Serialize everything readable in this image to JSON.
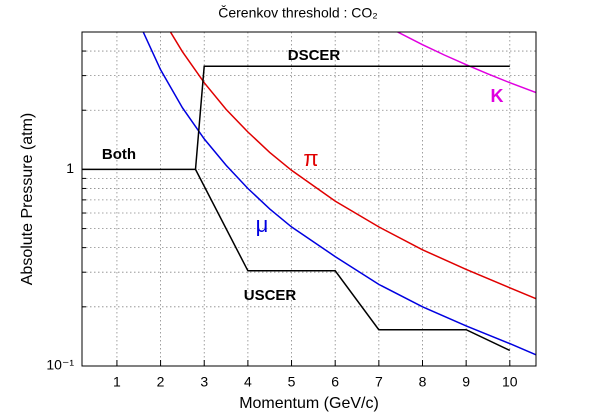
{
  "chart_data": {
    "type": "line",
    "title": "Čerenkov threshold : CO₂",
    "x_label": "Momentum (GeV/c)",
    "y_label": "Absolute Pressure (atm)",
    "xlim": [
      0.2,
      10.6
    ],
    "ylim": [
      0.1,
      5
    ],
    "y_log": true,
    "grid": true,
    "xticks": [
      1,
      2,
      3,
      4,
      5,
      6,
      7,
      8,
      9,
      10
    ],
    "yticks": [
      {
        "value": 0.1,
        "label": "10⁻¹"
      },
      1
    ],
    "y_minor_ticks": [
      0.2,
      0.3,
      0.4,
      0.5,
      0.6,
      0.7,
      0.8,
      0.9,
      2,
      3,
      4,
      5
    ],
    "series": [
      {
        "name": "π",
        "color": "#e00000",
        "x": [
          2.23,
          2.5,
          3,
          3.5,
          4,
          4.5,
          5,
          6,
          7,
          8,
          9,
          10,
          10.6
        ],
        "values": [
          4.99,
          3.97,
          2.76,
          2.02,
          1.55,
          1.22,
          0.99,
          0.69,
          0.51,
          0.39,
          0.31,
          0.25,
          0.22
        ]
      },
      {
        "name": "μ",
        "color": "#0000e0",
        "x": [
          1.6,
          2,
          2.5,
          3,
          3.5,
          4,
          4.5,
          5,
          6,
          7,
          8,
          9,
          10,
          10.6
        ],
        "values": [
          5.02,
          3.21,
          2.06,
          1.43,
          1.05,
          0.8,
          0.63,
          0.51,
          0.36,
          0.26,
          0.2,
          0.16,
          0.13,
          0.114
        ]
      },
      {
        "name": "K",
        "color": "#e000e0",
        "x": [
          7.43,
          8,
          8.5,
          9,
          9.5,
          10,
          10.6
        ],
        "values": [
          5.0,
          4.31,
          3.82,
          3.41,
          3.06,
          2.76,
          2.46
        ]
      },
      {
        "name": "Both",
        "color": "#000000",
        "x": [
          0.2,
          2.8
        ],
        "values": [
          1,
          1
        ]
      },
      {
        "name": "DSCER",
        "color": "#000000",
        "x": [
          2.8,
          3.0,
          10
        ],
        "values": [
          1,
          3.35,
          3.35
        ]
      },
      {
        "name": "USCER",
        "color": "#000000",
        "x": [
          2.8,
          4,
          6,
          7,
          9,
          10
        ],
        "values": [
          1,
          0.305,
          0.305,
          0.153,
          0.153,
          0.12
        ]
      }
    ]
  }
}
